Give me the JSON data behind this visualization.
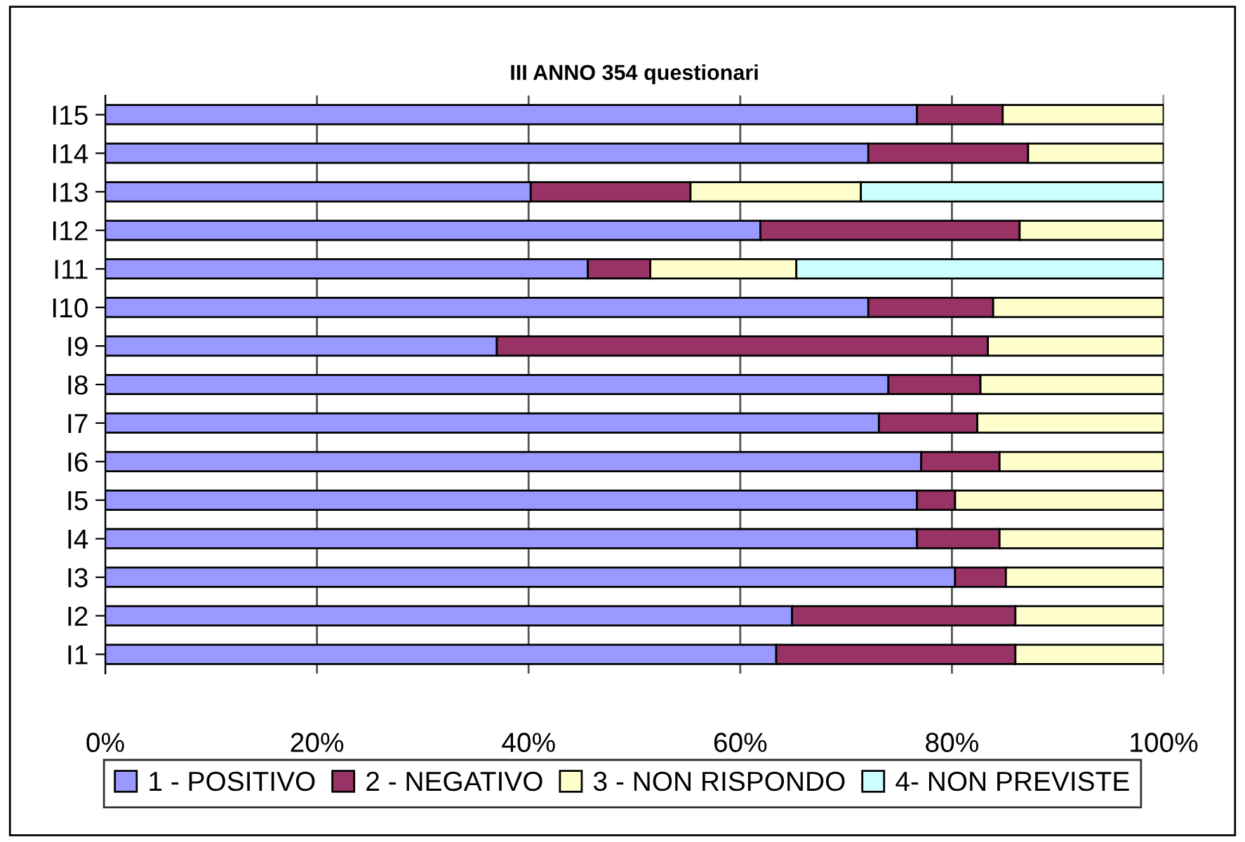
{
  "chart_data": {
    "type": "bar",
    "orientation": "horizontal",
    "stacked": true,
    "title": "III ANNO 354 questionari",
    "categories": [
      "I15",
      "I14",
      "I13",
      "I12",
      "I11",
      "I10",
      "I9",
      "I8",
      "I7",
      "I6",
      "I5",
      "I4",
      "I3",
      "I2",
      "I1"
    ],
    "series": [
      {
        "name": "1 - POSITIVO",
        "color": "#9999ff",
        "values": [
          76.7,
          72.1,
          40.2,
          61.9,
          45.6,
          72.1,
          37.0,
          74.0,
          73.1,
          77.1,
          76.7,
          76.7,
          80.3,
          64.9,
          63.4
        ]
      },
      {
        "name": "2 - NEGATIVO",
        "color": "#993366",
        "values": [
          8.1,
          15.1,
          15.1,
          24.5,
          5.9,
          11.8,
          46.4,
          8.7,
          9.3,
          7.4,
          3.6,
          7.8,
          4.8,
          21.1,
          22.6
        ]
      },
      {
        "name": "3 - NON RISPONDO",
        "color": "#ffffcc",
        "values": [
          15.2,
          12.8,
          16.1,
          13.6,
          13.8,
          16.1,
          16.6,
          17.3,
          17.6,
          15.5,
          19.7,
          15.5,
          14.9,
          14.0,
          14.0
        ]
      },
      {
        "name": "4- NON PREVISTE",
        "color": "#ccffff",
        "values": [
          null,
          null,
          28.6,
          null,
          34.7,
          null,
          null,
          null,
          null,
          null,
          null,
          null,
          null,
          null,
          null
        ]
      }
    ],
    "xlim": [
      0,
      100
    ],
    "xticks": [
      {
        "value": 0,
        "label": "0%"
      },
      {
        "value": 20,
        "label": "20%"
      },
      {
        "value": 40,
        "label": "40%"
      },
      {
        "value": 60,
        "label": "60%"
      },
      {
        "value": 80,
        "label": "80%"
      },
      {
        "value": 100,
        "label": "100%"
      }
    ],
    "grid": "x",
    "legend": "bottom"
  }
}
